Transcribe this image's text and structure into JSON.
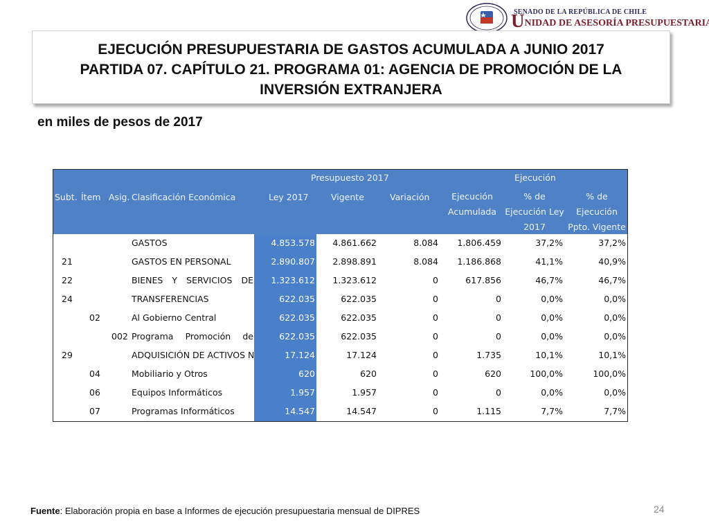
{
  "header": {
    "senate": "SENADO DE LA REPÚBLICA DE CHILE",
    "unit_initial": "U",
    "unit_rest": "NIDAD DE ASESORÍA PRESUPUESTARIA",
    "seal_text": "REPÚBLICA DE CHILE SENADO"
  },
  "title": {
    "line1": "EJECUCIÓN PRESUPUESTARIA DE GASTOS ACUMULADA A JUNIO 2017",
    "line2": "PARTIDA 07. CAPÍTULO 21. PROGRAMA 01: AGENCIA DE PROMOCIÓN DE LA",
    "line3": "INVERSIÓN EXTRANJERA"
  },
  "subtitle": "en miles de pesos de 2017",
  "table": {
    "group_presupuesto": "Presupuesto 2017",
    "group_ejecucion": "Ejecución",
    "col_subt": "Subt.",
    "col_item": "Ítem",
    "col_asig": "Asig.",
    "col_clasificacion": "Clasificación Económica",
    "col_ley": "Ley 2017",
    "col_vigente": "Vigente",
    "col_variacion": "Variación",
    "col_ejec_1": "Ejecución",
    "col_ejec_2": "Acumulada",
    "col_pct_ley_1": "% de",
    "col_pct_ley_2": "Ejecución Ley",
    "col_pct_ley_3": "2017",
    "col_pct_vig_1": "% de",
    "col_pct_vig_2": "Ejecución",
    "col_pct_vig_3": "Ppto. Vigente",
    "rows": [
      {
        "subt": "",
        "item": "",
        "asig": "",
        "clasificacion": "GASTOS",
        "ley": "4.853.578",
        "vigente": "4.861.662",
        "variacion": "8.084",
        "ejecucion": "1.806.459",
        "pct_ley": "37,2%",
        "pct_vigente": "37,2%"
      },
      {
        "subt": "21",
        "item": "",
        "asig": "",
        "clasificacion": "GASTOS EN PERSONAL",
        "ley": "2.890.807",
        "vigente": "2.898.891",
        "variacion": "8.084",
        "ejecucion": "1.186.868",
        "pct_ley": "41,1%",
        "pct_vigente": "40,9%"
      },
      {
        "subt": "22",
        "item": "",
        "asig": "",
        "clasificacion": "BIENES Y SERVICIOS DE",
        "ley": "1.323.612",
        "vigente": "1.323.612",
        "variacion": "0",
        "ejecucion": "617.856",
        "pct_ley": "46,7%",
        "pct_vigente": "46,7%"
      },
      {
        "subt": "24",
        "item": "",
        "asig": "",
        "clasificacion": "TRANSFERENCIAS",
        "ley": "622.035",
        "vigente": "622.035",
        "variacion": "0",
        "ejecucion": "0",
        "pct_ley": "0,0%",
        "pct_vigente": "0,0%"
      },
      {
        "subt": "",
        "item": "02",
        "asig": "",
        "clasificacion": "Al Gobierno Central",
        "ley": "622.035",
        "vigente": "622.035",
        "variacion": "0",
        "ejecucion": "0",
        "pct_ley": "0,0%",
        "pct_vigente": "0,0%"
      },
      {
        "subt": "",
        "item": "",
        "asig": "002",
        "clasificacion": "Programa Promoción de",
        "ley": "622.035",
        "vigente": "622.035",
        "variacion": "0",
        "ejecucion": "0",
        "pct_ley": "0,0%",
        "pct_vigente": "0,0%"
      },
      {
        "subt": "29",
        "item": "",
        "asig": "",
        "clasificacion": "ADQUISICIÓN DE ACTIVOS NO",
        "ley": "17.124",
        "vigente": "17.124",
        "variacion": "0",
        "ejecucion": "1.735",
        "pct_ley": "10,1%",
        "pct_vigente": "10,1%"
      },
      {
        "subt": "",
        "item": "04",
        "asig": "",
        "clasificacion": "Mobiliario y Otros",
        "ley": "620",
        "vigente": "620",
        "variacion": "0",
        "ejecucion": "620",
        "pct_ley": "100,0%",
        "pct_vigente": "100,0%"
      },
      {
        "subt": "",
        "item": "06",
        "asig": "",
        "clasificacion": "Equipos Informáticos",
        "ley": "1.957",
        "vigente": "1.957",
        "variacion": "0",
        "ejecucion": "0",
        "pct_ley": "0,0%",
        "pct_vigente": "0,0%"
      },
      {
        "subt": "",
        "item": "07",
        "asig": "",
        "clasificacion": "Programas Informáticos",
        "ley": "14.547",
        "vigente": "14.547",
        "variacion": "0",
        "ejecucion": "1.115",
        "pct_ley": "7,7%",
        "pct_vigente": "7,7%"
      }
    ]
  },
  "footer": {
    "label": "Fuente",
    "text": ": Elaboración propia en base  a Informes de ejecución presupuestaria mensual de DIPRES"
  },
  "page_number": "24",
  "colors": {
    "header_blue": "#4f81c7",
    "unit_red": "#7a1f2b",
    "senate_navy": "#2b2b5e"
  }
}
